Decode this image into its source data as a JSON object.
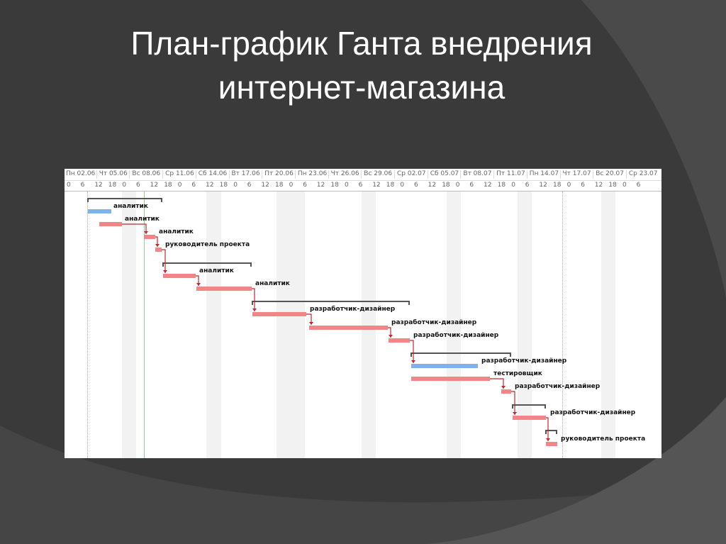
{
  "slide": {
    "title_line1": "План-график Ганта внедрения",
    "title_line2": "интернет-магазина"
  },
  "gantt": {
    "date_labels": [
      "Пн 02.06",
      "Чт 05.06",
      "Вс 08.06",
      "Ср 11.06",
      "Сб 14.06",
      "Вт 17.06",
      "Пт 20.06",
      "Пн 23.06",
      "Чт 26.06",
      "Вс 29.06",
      "Ср 02.07",
      "Сб 05.07",
      "Вт 08.07",
      "Пт 11.07",
      "Пн 14.07",
      "Чт 17.07",
      "Вс 20.07",
      "Ср 23.07"
    ],
    "hour_labels": [
      "0",
      "6",
      "12",
      "18",
      "0",
      "6",
      "12",
      "18",
      "0",
      "6",
      "12",
      "18",
      "0",
      "6",
      "12",
      "18",
      "0",
      "6",
      "12",
      "18",
      "0",
      "6",
      "12",
      "18",
      "0",
      "6",
      "12",
      "18",
      "0",
      "6",
      "12",
      "18",
      "0",
      "6",
      "12",
      "18",
      "0",
      "6",
      "12",
      "18",
      "0",
      "6"
    ],
    "tasks": [
      {
        "resource": "аналитик",
        "critical": false
      },
      {
        "resource": "аналитик",
        "critical": true
      },
      {
        "resource": "аналитик",
        "critical": true
      },
      {
        "resource": "руководитель проекта",
        "critical": true
      },
      {
        "resource": "аналитик",
        "critical": true
      },
      {
        "resource": "аналитик",
        "critical": true
      },
      {
        "resource": "разработчик-дизайнер",
        "critical": true
      },
      {
        "resource": "разработчик-дизайнер",
        "critical": true
      },
      {
        "resource": "разработчик-дизайнер",
        "critical": true
      },
      {
        "resource": "разработчик-дизайнер",
        "critical": false
      },
      {
        "resource": "тестировщик",
        "critical": true
      },
      {
        "resource": "разработчик-дизайнер",
        "critical": true
      },
      {
        "resource": "разработчик-дизайнер",
        "critical": true
      },
      {
        "resource": "руководитель проекта",
        "critical": true
      }
    ],
    "colors": {
      "critical": "#f28585",
      "normal": "#7fb2e8",
      "link": "#c0282d",
      "summary": "#555555",
      "today": "#8fd08f"
    }
  }
}
